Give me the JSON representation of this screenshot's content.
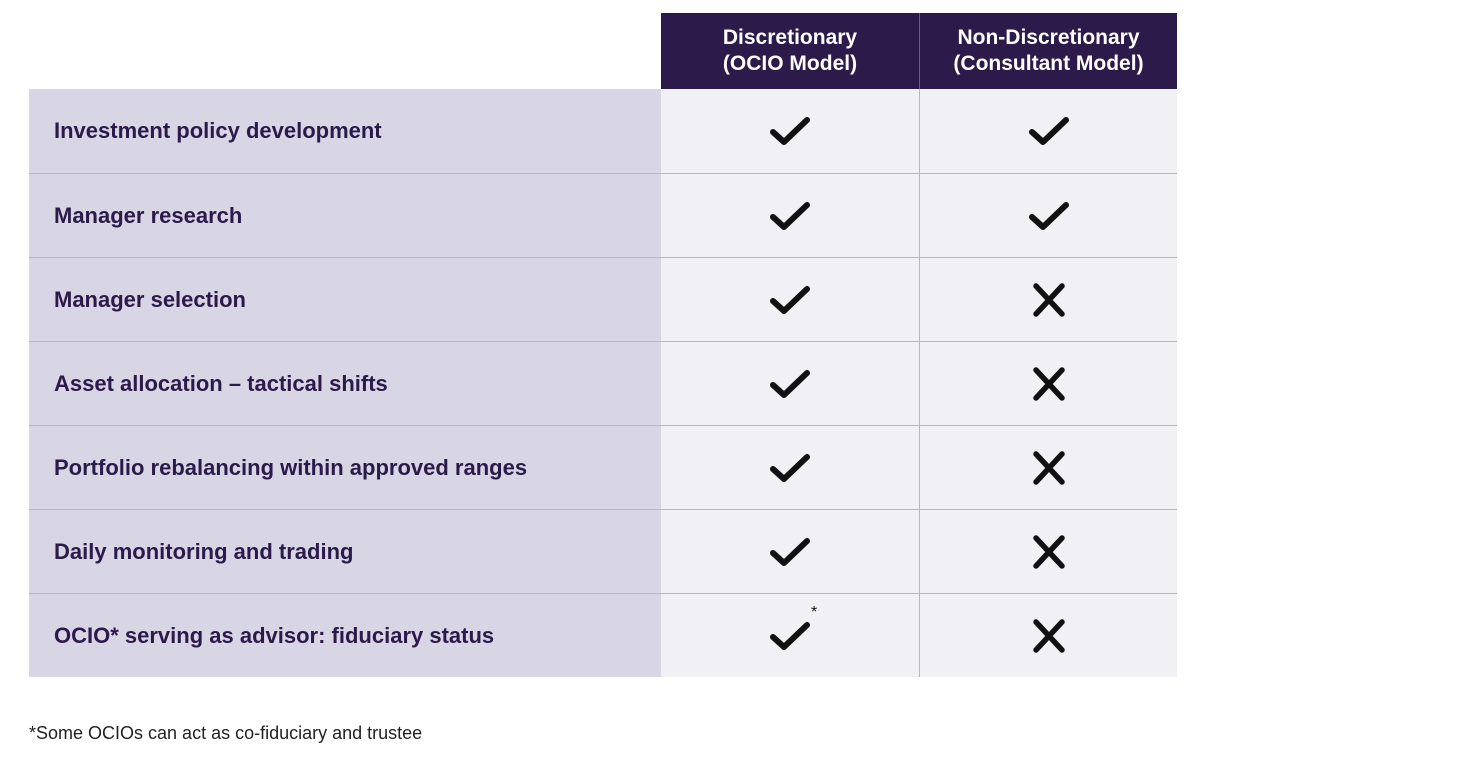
{
  "table": {
    "columns": [
      {
        "line1": "Discretionary",
        "line2": "(OCIO Model)"
      },
      {
        "line1": "Non-Discretionary",
        "line2": "(Consultant Model)"
      }
    ],
    "rows": [
      {
        "label": "Investment policy development",
        "col1": "check-icon",
        "col2": "check-icon"
      },
      {
        "label": "Manager research",
        "col1": "check-icon",
        "col2": "check-icon"
      },
      {
        "label": "Manager selection",
        "col1": "check-icon",
        "col2": "cross-icon"
      },
      {
        "label": "Asset allocation – tactical shifts",
        "col1": "check-icon",
        "col2": "cross-icon"
      },
      {
        "label": "Portfolio rebalancing within approved ranges",
        "col1": "check-icon",
        "col2": "cross-icon"
      },
      {
        "label": "Daily monitoring and trading",
        "col1": "check-icon",
        "col2": "cross-icon"
      },
      {
        "label": "OCIO* serving as advisor: fiduciary status",
        "col1": "check-icon",
        "col2": "cross-icon",
        "col1_note": "*"
      }
    ]
  },
  "footnote": "*Some OCIOs can act as co-fiduciary and trustee",
  "colors": {
    "header_bg": "#2b1a4a",
    "label_bg": "#d8d5e4",
    "cell_bg": "#f1f0f5",
    "label_text": "#2b1a4a"
  }
}
